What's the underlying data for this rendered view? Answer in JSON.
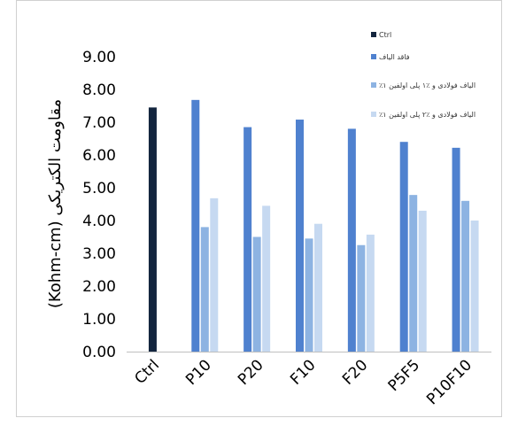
{
  "chart_data": {
    "type": "bar",
    "title": "",
    "xlabel": "",
    "ylabel": "مقاومت الکتریکی (Kohm-cm)",
    "ylim": [
      0,
      9
    ],
    "yticks": [
      "0.00",
      "1.00",
      "2.00",
      "3.00",
      "4.00",
      "5.00",
      "6.00",
      "7.00",
      "8.00",
      "9.00"
    ],
    "categories": [
      "Ctrl",
      "P10",
      "P20",
      "F10",
      "F20",
      "P5F5",
      "P10F10"
    ],
    "legend_position": "top-right",
    "grid": false,
    "series": [
      {
        "name": "Ctrl",
        "color": "#13253e",
        "values": [
          7.45,
          null,
          null,
          null,
          null,
          null,
          null
        ]
      },
      {
        "name": "فاقد الیاف",
        "color": "#4f81cf",
        "values": [
          null,
          7.68,
          6.85,
          7.08,
          6.8,
          6.4,
          6.22
        ]
      },
      {
        "name": "٪۱ الیاف فولادی و ٪۱ پلی اولفین",
        "color": "#8db3e2",
        "values": [
          null,
          3.8,
          3.5,
          3.45,
          3.25,
          4.78,
          4.6
        ]
      },
      {
        "name": "٪۱ الیاف فولادی و ٪۲ پلی اولفین",
        "color": "#c6d9f1",
        "values": [
          null,
          4.68,
          4.45,
          3.9,
          3.57,
          4.3,
          4.0
        ]
      }
    ]
  }
}
